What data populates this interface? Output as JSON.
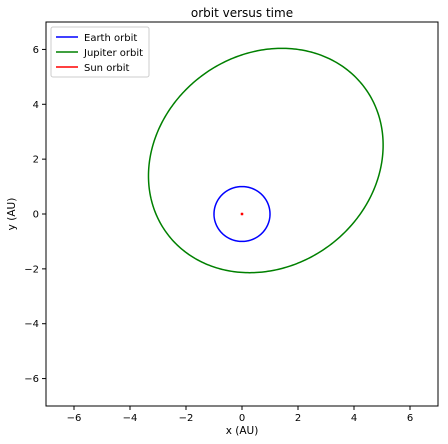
{
  "chart_data": {
    "type": "line",
    "title": "orbit versus time",
    "xlabel": "x (AU)",
    "ylabel": "y (AU)",
    "xlim": [
      -7,
      7
    ],
    "ylim": [
      -7,
      7
    ],
    "xticks": [
      -6,
      -4,
      -2,
      0,
      2,
      4,
      6
    ],
    "yticks": [
      -6,
      -4,
      -2,
      0,
      2,
      4,
      6
    ],
    "tick_labels": [
      "−6",
      "−4",
      "−2",
      "0",
      "2",
      "4",
      "6"
    ],
    "grid": false,
    "legend_position": "top-left",
    "series": [
      {
        "name": "Earth orbit",
        "color": "#0000ff",
        "shape": "ellipse",
        "center": [
          0.0,
          0.0
        ],
        "semi_axes": [
          1.0,
          1.0
        ],
        "rotation_deg": 0
      },
      {
        "name": "Jupiter orbit",
        "color": "#008000",
        "shape": "ellipse",
        "center": [
          0.85,
          1.95
        ],
        "semi_axes": [
          4.42,
          3.84
        ],
        "rotation_deg": 40
      },
      {
        "name": "Sun orbit",
        "color": "#ff0000",
        "shape": "ellipse",
        "center": [
          0.0,
          0.0
        ],
        "semi_axes": [
          0.02,
          0.02
        ],
        "rotation_deg": 0
      }
    ]
  }
}
